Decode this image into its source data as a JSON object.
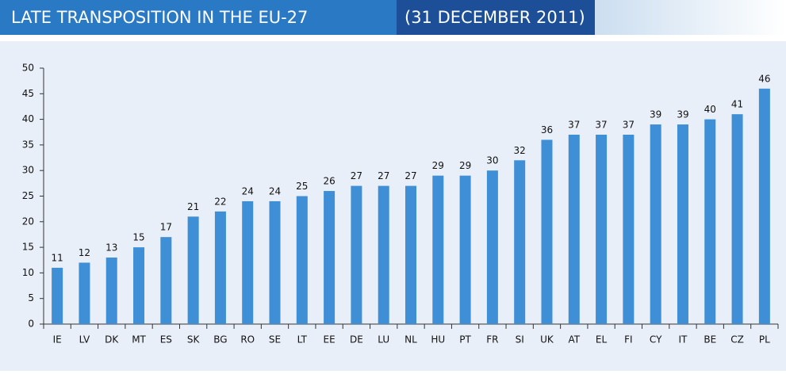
{
  "chart_data": {
    "type": "bar",
    "title": "LATE TRANSPOSITION IN THE EU-27",
    "subtitle": "(31 DECEMBER 2011)",
    "categories": [
      "IE",
      "LV",
      "DK",
      "MT",
      "ES",
      "SK",
      "BG",
      "RO",
      "SE",
      "LT",
      "EE",
      "DE",
      "LU",
      "NL",
      "HU",
      "PT",
      "FR",
      "SI",
      "UK",
      "AT",
      "EL",
      "FI",
      "CY",
      "IT",
      "BE",
      "CZ",
      "PL"
    ],
    "values": [
      11,
      12,
      13,
      15,
      17,
      21,
      22,
      24,
      24,
      25,
      26,
      27,
      27,
      27,
      29,
      29,
      30,
      32,
      36,
      37,
      37,
      37,
      39,
      39,
      40,
      41,
      46
    ],
    "color": "#3f8fd6",
    "ylim": [
      0,
      50
    ],
    "yticks": [
      0,
      5,
      10,
      15,
      20,
      25,
      30,
      35,
      40,
      45,
      50
    ],
    "grid": false
  }
}
